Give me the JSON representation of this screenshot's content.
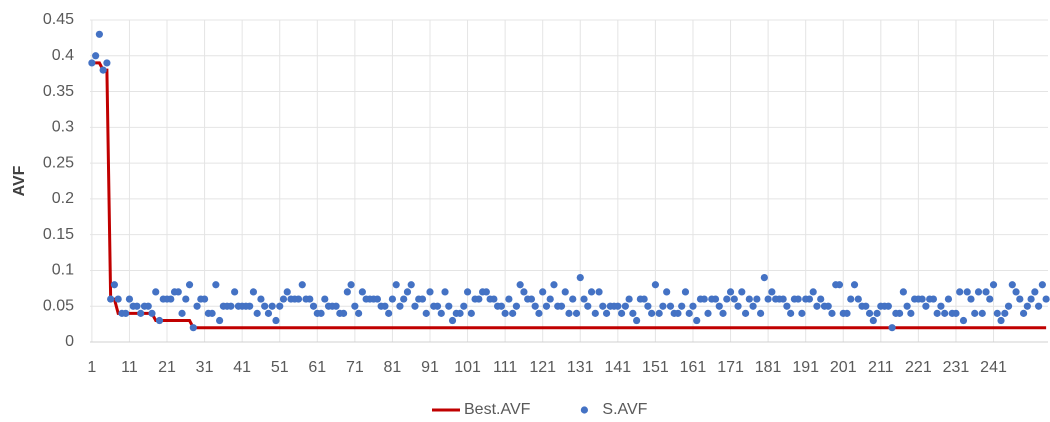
{
  "chart_data": {
    "type": "line",
    "ylabel": "AVF",
    "xlim": [
      0.5,
      255.5
    ],
    "xticks": [
      1,
      11,
      21,
      31,
      41,
      51,
      61,
      71,
      81,
      91,
      101,
      111,
      121,
      131,
      141,
      151,
      161,
      171,
      181,
      191,
      201,
      211,
      221,
      231,
      241
    ],
    "ylim": [
      0,
      0.45
    ],
    "yticks": [
      0,
      0.05,
      0.1,
      0.15,
      0.2,
      0.25,
      0.3,
      0.35,
      0.4,
      0.45
    ],
    "grid": true,
    "legend": "bottom",
    "x": [
      1,
      2,
      3,
      4,
      5,
      6,
      7,
      8,
      9,
      10,
      11,
      12,
      13,
      14,
      15,
      16,
      17,
      18,
      19,
      20,
      21,
      22,
      23,
      24,
      25,
      26,
      27,
      28,
      29,
      30,
      31,
      32,
      33,
      34,
      35,
      36,
      37,
      38,
      39,
      40,
      41,
      42,
      43,
      44,
      45,
      46,
      47,
      48,
      49,
      50,
      51,
      52,
      53,
      54,
      55,
      56,
      57,
      58,
      59,
      60,
      61,
      62,
      63,
      64,
      65,
      66,
      67,
      68,
      69,
      70,
      71,
      72,
      73,
      74,
      75,
      76,
      77,
      78,
      79,
      80,
      81,
      82,
      83,
      84,
      85,
      86,
      87,
      88,
      89,
      90,
      91,
      92,
      93,
      94,
      95,
      96,
      97,
      98,
      99,
      100,
      101,
      102,
      103,
      104,
      105,
      106,
      107,
      108,
      109,
      110,
      111,
      112,
      113,
      114,
      115,
      116,
      117,
      118,
      119,
      120,
      121,
      122,
      123,
      124,
      125,
      126,
      127,
      128,
      129,
      130,
      131,
      132,
      133,
      134,
      135,
      136,
      137,
      138,
      139,
      140,
      141,
      142,
      143,
      144,
      145,
      146,
      147,
      148,
      149,
      150,
      151,
      152,
      153,
      154,
      155,
      156,
      157,
      158,
      159,
      160,
      161,
      162,
      163,
      164,
      165,
      166,
      167,
      168,
      169,
      170,
      171,
      172,
      173,
      174,
      175,
      176,
      177,
      178,
      179,
      180,
      181,
      182,
      183,
      184,
      185,
      186,
      187,
      188,
      189,
      190,
      191,
      192,
      193,
      194,
      195,
      196,
      197,
      198,
      199,
      200,
      201,
      202,
      203,
      204,
      205,
      206,
      207,
      208,
      209,
      210,
      211,
      212,
      213,
      214,
      215,
      216,
      217,
      218,
      219,
      220,
      221,
      222,
      223,
      224,
      225,
      226,
      227,
      228,
      229,
      230,
      231,
      232,
      233,
      234,
      235,
      236,
      237,
      238,
      239,
      240,
      241,
      242,
      243,
      244,
      245,
      246,
      247,
      248,
      249,
      250,
      251,
      252,
      253,
      254,
      255
    ],
    "series": [
      {
        "name": "Best.AVF",
        "color": "#c00000",
        "mode": "line",
        "values": [
          0.39,
          0.39,
          0.39,
          0.38,
          0.38,
          0.06,
          0.06,
          0.04,
          0.04,
          0.04,
          0.04,
          0.04,
          0.04,
          0.04,
          0.04,
          0.04,
          0.04,
          0.03,
          0.03,
          0.03,
          0.03,
          0.03,
          0.03,
          0.03,
          0.03,
          0.03,
          0.03,
          0.02,
          0.02,
          0.02,
          0.02,
          0.02,
          0.02,
          0.02,
          0.02,
          0.02,
          0.02,
          0.02,
          0.02,
          0.02,
          0.02,
          0.02,
          0.02,
          0.02,
          0.02,
          0.02,
          0.02,
          0.02,
          0.02,
          0.02,
          0.02,
          0.02,
          0.02,
          0.02,
          0.02,
          0.02,
          0.02,
          0.02,
          0.02,
          0.02,
          0.02,
          0.02,
          0.02,
          0.02,
          0.02,
          0.02,
          0.02,
          0.02,
          0.02,
          0.02,
          0.02,
          0.02,
          0.02,
          0.02,
          0.02,
          0.02,
          0.02,
          0.02,
          0.02,
          0.02,
          0.02,
          0.02,
          0.02,
          0.02,
          0.02,
          0.02,
          0.02,
          0.02,
          0.02,
          0.02,
          0.02,
          0.02,
          0.02,
          0.02,
          0.02,
          0.02,
          0.02,
          0.02,
          0.02,
          0.02,
          0.02,
          0.02,
          0.02,
          0.02,
          0.02,
          0.02,
          0.02,
          0.02,
          0.02,
          0.02,
          0.02,
          0.02,
          0.02,
          0.02,
          0.02,
          0.02,
          0.02,
          0.02,
          0.02,
          0.02,
          0.02,
          0.02,
          0.02,
          0.02,
          0.02,
          0.02,
          0.02,
          0.02,
          0.02,
          0.02,
          0.02,
          0.02,
          0.02,
          0.02,
          0.02,
          0.02,
          0.02,
          0.02,
          0.02,
          0.02,
          0.02,
          0.02,
          0.02,
          0.02,
          0.02,
          0.02,
          0.02,
          0.02,
          0.02,
          0.02,
          0.02,
          0.02,
          0.02,
          0.02,
          0.02,
          0.02,
          0.02,
          0.02,
          0.02,
          0.02,
          0.02,
          0.02,
          0.02,
          0.02,
          0.02,
          0.02,
          0.02,
          0.02,
          0.02,
          0.02,
          0.02,
          0.02,
          0.02,
          0.02,
          0.02,
          0.02,
          0.02,
          0.02,
          0.02,
          0.02,
          0.02,
          0.02,
          0.02,
          0.02,
          0.02,
          0.02,
          0.02,
          0.02,
          0.02,
          0.02,
          0.02,
          0.02,
          0.02,
          0.02,
          0.02,
          0.02,
          0.02,
          0.02,
          0.02,
          0.02,
          0.02,
          0.02,
          0.02,
          0.02,
          0.02,
          0.02,
          0.02,
          0.02,
          0.02,
          0.02,
          0.02,
          0.02,
          0.02,
          0.02,
          0.02,
          0.02,
          0.02,
          0.02,
          0.02,
          0.02,
          0.02,
          0.02,
          0.02,
          0.02,
          0.02,
          0.02,
          0.02,
          0.02,
          0.02,
          0.02,
          0.02,
          0.02,
          0.02,
          0.02,
          0.02,
          0.02,
          0.02,
          0.02,
          0.02,
          0.02,
          0.02,
          0.02,
          0.02,
          0.02,
          0.02,
          0.02,
          0.02,
          0.02,
          0.02,
          0.02,
          0.02,
          0.02,
          0.02,
          0.02,
          0.02
        ]
      },
      {
        "name": "S.AVF",
        "color": "#4472c4",
        "mode": "markers",
        "values": [
          0.39,
          0.4,
          0.43,
          0.38,
          0.39,
          0.06,
          0.08,
          0.06,
          0.04,
          0.04,
          0.06,
          0.05,
          0.05,
          0.04,
          0.05,
          0.05,
          0.04,
          0.07,
          0.03,
          0.06,
          0.06,
          0.06,
          0.07,
          0.07,
          0.04,
          0.06,
          0.08,
          0.02,
          0.05,
          0.06,
          0.06,
          0.04,
          0.04,
          0.08,
          0.03,
          0.05,
          0.05,
          0.05,
          0.07,
          0.05,
          0.05,
          0.05,
          0.05,
          0.07,
          0.04,
          0.06,
          0.05,
          0.04,
          0.05,
          0.03,
          0.05,
          0.06,
          0.07,
          0.06,
          0.06,
          0.06,
          0.08,
          0.06,
          0.06,
          0.05,
          0.04,
          0.04,
          0.06,
          0.05,
          0.05,
          0.05,
          0.04,
          0.04,
          0.07,
          0.08,
          0.05,
          0.04,
          0.07,
          0.06,
          0.06,
          0.06,
          0.06,
          0.05,
          0.05,
          0.04,
          0.06,
          0.08,
          0.05,
          0.06,
          0.07,
          0.08,
          0.05,
          0.06,
          0.06,
          0.04,
          0.07,
          0.05,
          0.05,
          0.04,
          0.07,
          0.05,
          0.03,
          0.04,
          0.04,
          0.05,
          0.07,
          0.04,
          0.06,
          0.06,
          0.07,
          0.07,
          0.06,
          0.06,
          0.05,
          0.05,
          0.04,
          0.06,
          0.04,
          0.05,
          0.08,
          0.07,
          0.06,
          0.06,
          0.05,
          0.04,
          0.07,
          0.05,
          0.06,
          0.08,
          0.05,
          0.05,
          0.07,
          0.04,
          0.06,
          0.04,
          0.09,
          0.06,
          0.05,
          0.07,
          0.04,
          0.07,
          0.05,
          0.04,
          0.05,
          0.05,
          0.05,
          0.04,
          0.05,
          0.06,
          0.04,
          0.03,
          0.06,
          0.06,
          0.05,
          0.04,
          0.08,
          0.04,
          0.05,
          0.07,
          0.05,
          0.04,
          0.04,
          0.05,
          0.07,
          0.04,
          0.05,
          0.03,
          0.06,
          0.06,
          0.04,
          0.06,
          0.06,
          0.05,
          0.04,
          0.06,
          0.07,
          0.06,
          0.05,
          0.07,
          0.04,
          0.06,
          0.05,
          0.06,
          0.04,
          0.09,
          0.06,
          0.07,
          0.06,
          0.06,
          0.06,
          0.05,
          0.04,
          0.06,
          0.06,
          0.04,
          0.06,
          0.06,
          0.07,
          0.05,
          0.06,
          0.05,
          0.05,
          0.04,
          0.08,
          0.08,
          0.04,
          0.04,
          0.06,
          0.08,
          0.06,
          0.05,
          0.05,
          0.04,
          0.03,
          0.04,
          0.05,
          0.05,
          0.05,
          0.02,
          0.04,
          0.04,
          0.07,
          0.05,
          0.04,
          0.06,
          0.06,
          0.06,
          0.05,
          0.06,
          0.06,
          0.04,
          0.05,
          0.04,
          0.06,
          0.04,
          0.04,
          0.07,
          0.03,
          0.07,
          0.06,
          0.04,
          0.07,
          0.04,
          0.07,
          0.06,
          0.08,
          0.04,
          0.03,
          0.04,
          0.05,
          0.08,
          0.07,
          0.06,
          0.04,
          0.05,
          0.06,
          0.07,
          0.05,
          0.08,
          0.06
        ]
      }
    ]
  }
}
